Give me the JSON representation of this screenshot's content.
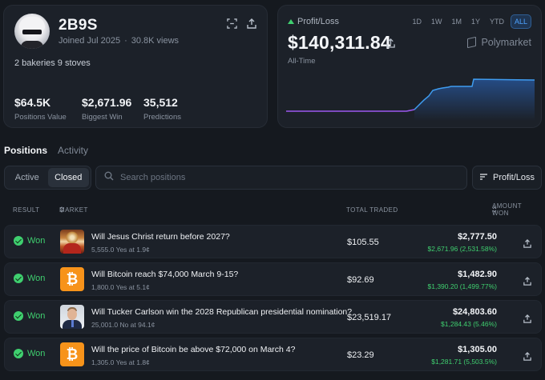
{
  "profile": {
    "username": "2B9S",
    "joined": "Joined Jul 2025",
    "views": "30.8K views",
    "bio": "2 bakeries 9 stoves",
    "stats": [
      {
        "value": "$64.5K",
        "label": "Positions Value"
      },
      {
        "value": "$2,671.96",
        "label": "Biggest Win"
      },
      {
        "value": "35,512",
        "label": "Predictions"
      }
    ]
  },
  "pnl": {
    "label": "Profit/Loss",
    "value": "$140,311.84",
    "period": "All-Time",
    "brand": "Polymarket",
    "ranges": [
      "1D",
      "1W",
      "1M",
      "1Y",
      "YTD",
      "ALL"
    ],
    "active_range": "ALL",
    "colors": {
      "up": "#3fcf6f",
      "chart_line": "#3f9cf0",
      "chart_line_early": "#9b59f0",
      "accent": "#4da3ff"
    }
  },
  "tabs": [
    "Positions",
    "Activity"
  ],
  "filter": {
    "active_label": "Active",
    "closed_label": "Closed",
    "selected": "Closed"
  },
  "search": {
    "placeholder": "Search positions"
  },
  "sort": {
    "label": "Profit/Loss"
  },
  "table": {
    "headers": {
      "result": "RESULT",
      "market": "MARKET",
      "traded": "TOTAL TRADED",
      "won": "AMOUNT WON"
    },
    "rows": [
      {
        "result": "Won",
        "icon": "jesus-thumbnail",
        "question": "Will Jesus Christ return before 2027?",
        "detail": "5,555.0 Yes at 1.9¢",
        "traded": "$105.55",
        "amount": "$2,777.50",
        "gain": "$2,671.96 (2,531.58%)"
      },
      {
        "result": "Won",
        "icon": "bitcoin-logo",
        "question": "Will Bitcoin reach $74,000 March 9-15?",
        "detail": "1,800.0 Yes at 5.1¢",
        "traded": "$92.69",
        "amount": "$1,482.90",
        "gain": "$1,390.20 (1,499.77%)"
      },
      {
        "result": "Won",
        "icon": "tucker-thumbnail",
        "question": "Will Tucker Carlson win the 2028 Republican presidential nomination?",
        "detail": "25,001.0 No at 94.1¢",
        "traded": "$23,519.17",
        "amount": "$24,803.60",
        "gain": "$1,284.43 (5.46%)"
      },
      {
        "result": "Won",
        "icon": "bitcoin-logo",
        "question": "Will the price of Bitcoin be above $72,000 on March 4?",
        "detail": "1,305.0 Yes at 1.8¢",
        "traded": "$23.29",
        "amount": "$1,305.00",
        "gain": "$1,281.71 (5,503.5%)"
      }
    ]
  }
}
